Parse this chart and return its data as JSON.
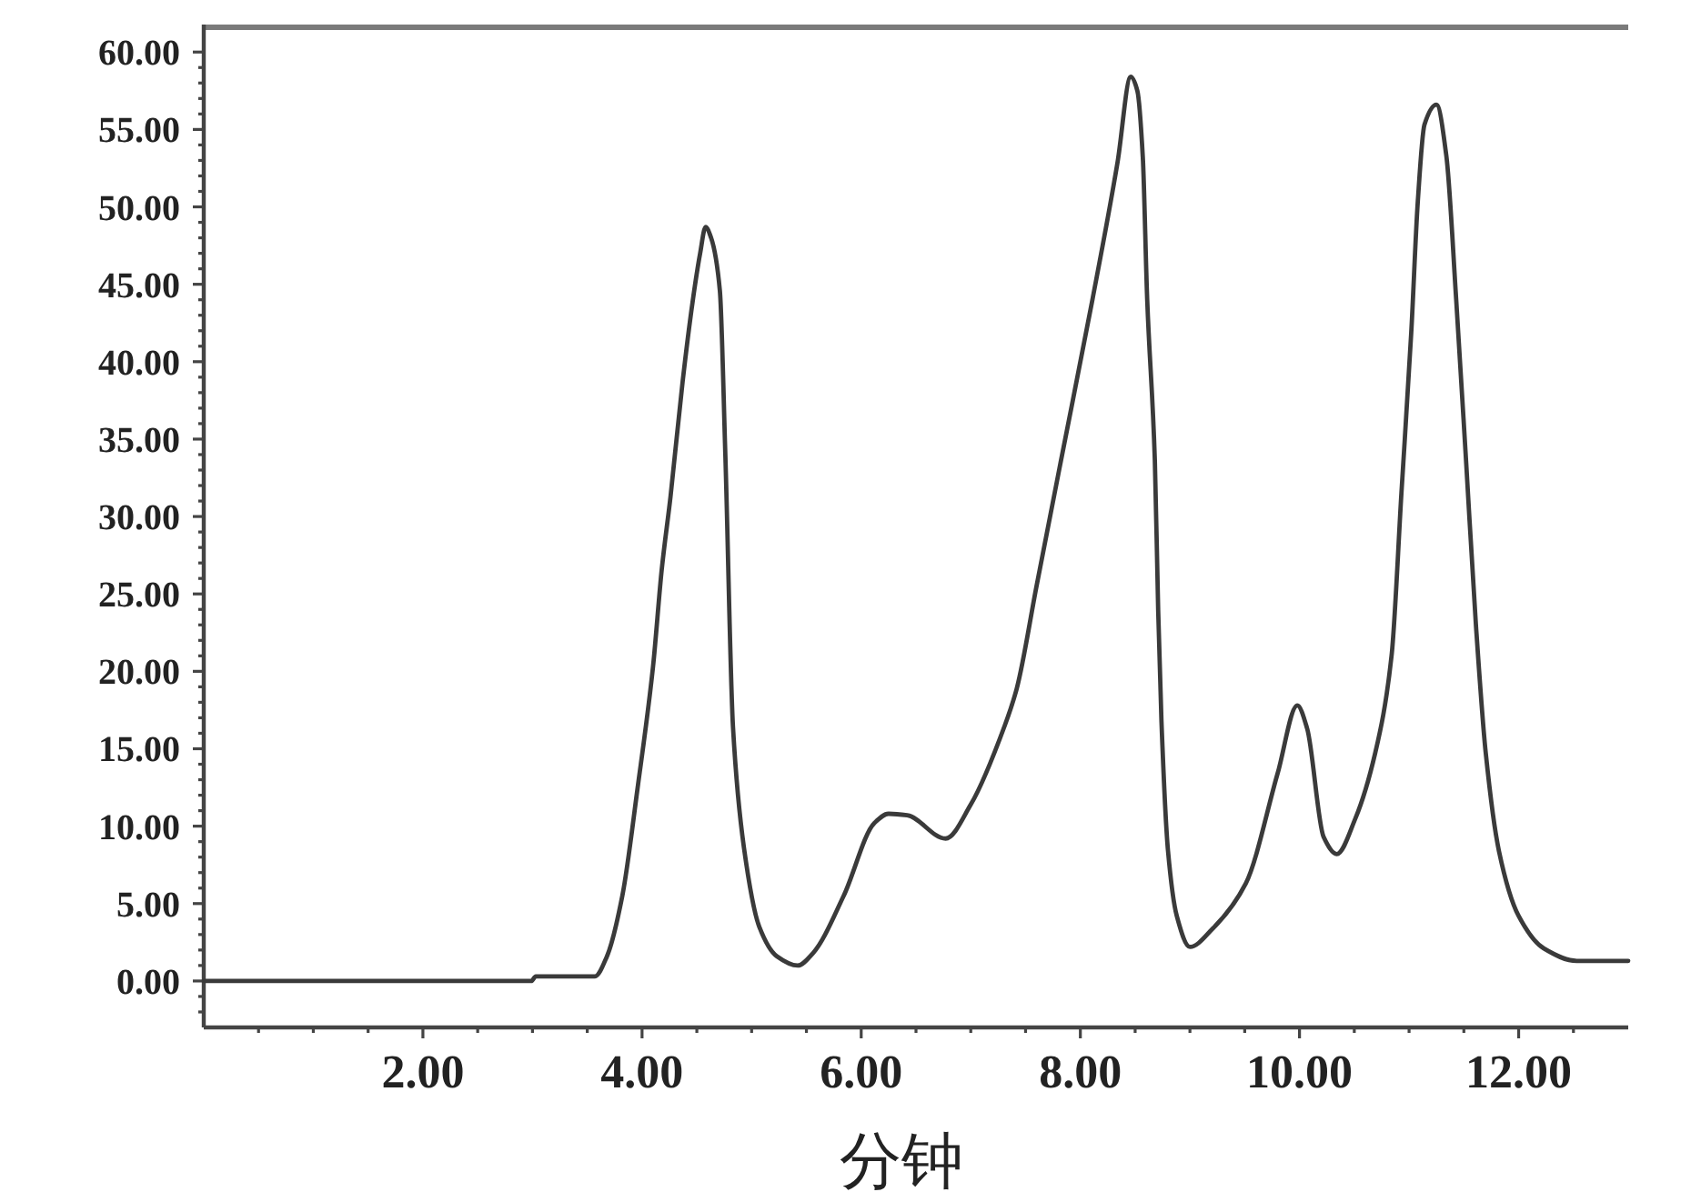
{
  "chart_data": {
    "type": "line",
    "xlabel": "分钟",
    "xlim": [
      0,
      13
    ],
    "ylim": [
      -3,
      61.6
    ],
    "xticks": [
      {
        "value": 0.5,
        "label": null
      },
      {
        "value": 1,
        "label": null
      },
      {
        "value": 1.5,
        "label": null
      },
      {
        "value": 2,
        "label": "2.00"
      },
      {
        "value": 2.5,
        "label": null
      },
      {
        "value": 3,
        "label": null
      },
      {
        "value": 3.5,
        "label": null
      },
      {
        "value": 4,
        "label": "4.00"
      },
      {
        "value": 4.5,
        "label": null
      },
      {
        "value": 5,
        "label": null
      },
      {
        "value": 5.5,
        "label": null
      },
      {
        "value": 6,
        "label": "6.00"
      },
      {
        "value": 6.5,
        "label": null
      },
      {
        "value": 7,
        "label": null
      },
      {
        "value": 7.5,
        "label": null
      },
      {
        "value": 8,
        "label": "8.00"
      },
      {
        "value": 8.5,
        "label": null
      },
      {
        "value": 9,
        "label": null
      },
      {
        "value": 9.5,
        "label": null
      },
      {
        "value": 10,
        "label": "10.00"
      },
      {
        "value": 10.5,
        "label": null
      },
      {
        "value": 11,
        "label": null
      },
      {
        "value": 11.5,
        "label": null
      },
      {
        "value": 12,
        "label": "12.00"
      },
      {
        "value": 12.5,
        "label": null
      }
    ],
    "yticks": [
      {
        "value": -2,
        "label": null
      },
      {
        "value": -1,
        "label": null
      },
      {
        "value": 0,
        "label": "0.00"
      },
      {
        "value": 1,
        "label": null
      },
      {
        "value": 2,
        "label": null
      },
      {
        "value": 3,
        "label": null
      },
      {
        "value": 4,
        "label": null
      },
      {
        "value": 5,
        "label": "5.00"
      },
      {
        "value": 6,
        "label": null
      },
      {
        "value": 7,
        "label": null
      },
      {
        "value": 8,
        "label": null
      },
      {
        "value": 9,
        "label": null
      },
      {
        "value": 10,
        "label": "10.00"
      },
      {
        "value": 11,
        "label": null
      },
      {
        "value": 12,
        "label": null
      },
      {
        "value": 13,
        "label": null
      },
      {
        "value": 14,
        "label": null
      },
      {
        "value": 15,
        "label": "15.00"
      },
      {
        "value": 16,
        "label": null
      },
      {
        "value": 17,
        "label": null
      },
      {
        "value": 18,
        "label": null
      },
      {
        "value": 19,
        "label": null
      },
      {
        "value": 20,
        "label": "20.00"
      },
      {
        "value": 21,
        "label": null
      },
      {
        "value": 22,
        "label": null
      },
      {
        "value": 23,
        "label": null
      },
      {
        "value": 24,
        "label": null
      },
      {
        "value": 25,
        "label": "25.00"
      },
      {
        "value": 26,
        "label": null
      },
      {
        "value": 27,
        "label": null
      },
      {
        "value": 28,
        "label": null
      },
      {
        "value": 29,
        "label": null
      },
      {
        "value": 30,
        "label": "30.00"
      },
      {
        "value": 31,
        "label": null
      },
      {
        "value": 32,
        "label": null
      },
      {
        "value": 33,
        "label": null
      },
      {
        "value": 34,
        "label": null
      },
      {
        "value": 35,
        "label": "35.00"
      },
      {
        "value": 36,
        "label": null
      },
      {
        "value": 37,
        "label": null
      },
      {
        "value": 38,
        "label": null
      },
      {
        "value": 39,
        "label": null
      },
      {
        "value": 40,
        "label": "40.00"
      },
      {
        "value": 41,
        "label": null
      },
      {
        "value": 42,
        "label": null
      },
      {
        "value": 43,
        "label": null
      },
      {
        "value": 44,
        "label": null
      },
      {
        "value": 45,
        "label": "45.00"
      },
      {
        "value": 46,
        "label": null
      },
      {
        "value": 47,
        "label": null
      },
      {
        "value": 48,
        "label": null
      },
      {
        "value": 49,
        "label": null
      },
      {
        "value": 50,
        "label": "50.00"
      },
      {
        "value": 51,
        "label": null
      },
      {
        "value": 52,
        "label": null
      },
      {
        "value": 53,
        "label": null
      },
      {
        "value": 54,
        "label": null
      },
      {
        "value": 55,
        "label": "55.00"
      },
      {
        "value": 56,
        "label": null
      },
      {
        "value": 57,
        "label": null
      },
      {
        "value": 58,
        "label": null
      },
      {
        "value": 59,
        "label": null
      },
      {
        "value": 60,
        "label": "60.00"
      }
    ],
    "series": [
      {
        "color": "#3a3a3a",
        "x": [
          0,
          2.99,
          3.03,
          3.57,
          3.68,
          3.82,
          3.96,
          4.1,
          4.18,
          4.26,
          4.37,
          4.46,
          4.53,
          4.58,
          4.63,
          4.71,
          4.76,
          4.83,
          4.93,
          5.07,
          5.23,
          5.42,
          5.56,
          5.84,
          6.12,
          6.25,
          6.42,
          6.77,
          7.0,
          7.31,
          7.42,
          7.6,
          7.82,
          8.11,
          8.34,
          8.46,
          8.52,
          8.57,
          8.61,
          8.68,
          8.71,
          8.74,
          8.8,
          8.88,
          9.0,
          9.21,
          9.51,
          9.8,
          9.98,
          10.07,
          10.22,
          10.34,
          10.51,
          10.69,
          10.84,
          10.93,
          11.02,
          11.08,
          11.14,
          11.25,
          11.34,
          11.43,
          11.52,
          11.61,
          11.7,
          11.82,
          12.0,
          12.23,
          12.53,
          13.0
        ],
        "values": [
          0,
          0,
          0.3,
          0.3,
          1.6,
          5.5,
          12.5,
          20.3,
          26.6,
          31.3,
          38.7,
          43.8,
          47,
          48.7,
          48,
          44.6,
          34,
          16.4,
          8.6,
          3.5,
          1.6,
          1.0,
          1.8,
          5.5,
          10.2,
          10.8,
          10.7,
          9.2,
          11.4,
          16.5,
          18.9,
          25.5,
          33.5,
          44,
          52.9,
          58.4,
          57.5,
          53.2,
          44,
          33.6,
          24,
          16.8,
          8.4,
          4.2,
          2.2,
          3.4,
          6.3,
          13.4,
          17.8,
          16.3,
          9.3,
          8.2,
          10.5,
          14.7,
          21,
          31.5,
          41.9,
          50.4,
          55.3,
          56.6,
          53.3,
          44,
          33.6,
          23,
          14.7,
          8.4,
          4.2,
          2.1,
          1.3,
          1.3
        ]
      }
    ]
  }
}
